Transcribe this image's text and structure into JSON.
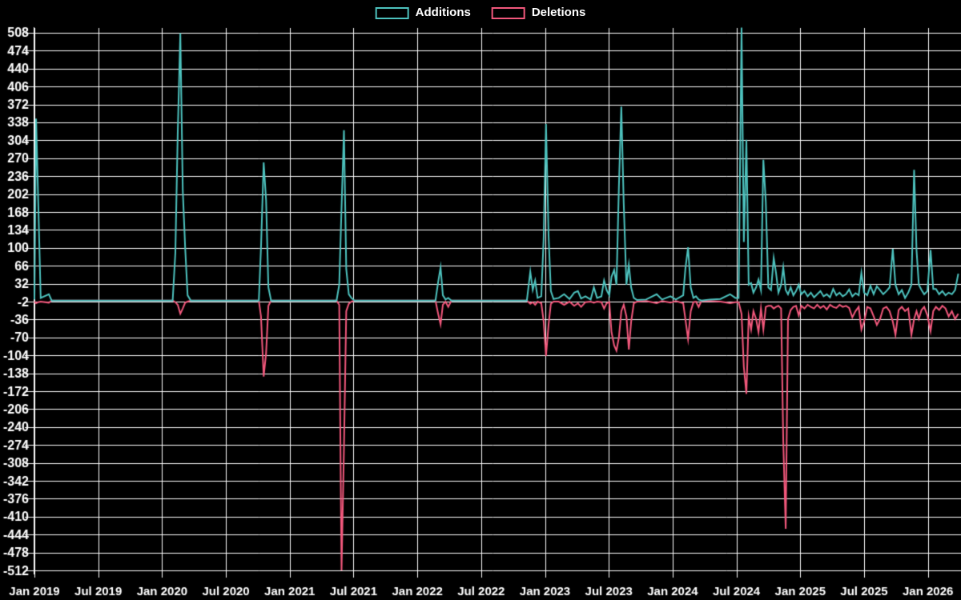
{
  "page": {
    "background_color": "#000000",
    "text_color": "#ffffff"
  },
  "legend": {
    "position": "top-center",
    "additions_label": "Additions",
    "deletions_label": "Deletions"
  },
  "chart_data": {
    "type": "line",
    "title": "",
    "background": "#000000",
    "grid_color": "#ffffff",
    "grid": true,
    "legend_position": "top-center",
    "y_axis": {
      "min": -512,
      "max": 508,
      "tick_step": 34,
      "ticks": [
        508,
        474,
        440,
        406,
        372,
        338,
        304,
        270,
        236,
        202,
        168,
        134,
        100,
        66,
        32,
        -2,
        -36,
        -70,
        -104,
        -138,
        -172,
        -206,
        -240,
        -274,
        -308,
        -342,
        -376,
        -410,
        -444,
        -478,
        -512
      ]
    },
    "x_axis": {
      "unit": "time (weekly samples, decimal years)",
      "ticks": [
        {
          "label": "Jan 2019",
          "year": 2019.0
        },
        {
          "label": "Jul 2019",
          "year": 2019.5
        },
        {
          "label": "Jan 2020",
          "year": 2020.0
        },
        {
          "label": "Jul 2020",
          "year": 2020.5
        },
        {
          "label": "Jan 2021",
          "year": 2021.0
        },
        {
          "label": "Jul 2021",
          "year": 2021.5
        },
        {
          "label": "Jan 2022",
          "year": 2022.0
        },
        {
          "label": "Jul 2022",
          "year": 2022.5
        },
        {
          "label": "Jan 2023",
          "year": 2023.0
        },
        {
          "label": "Jul 2023",
          "year": 2023.5
        },
        {
          "label": "Jan 2024",
          "year": 2024.0
        },
        {
          "label": "Jul 2024",
          "year": 2024.5
        },
        {
          "label": "Jan 2025",
          "year": 2025.0
        },
        {
          "label": "Jul 2025",
          "year": 2025.5
        },
        {
          "label": "Jan 2026",
          "year": 2026.0
        }
      ]
    },
    "series": [
      {
        "name": "Additions",
        "color": "#4dc2be",
        "value_index": 1
      },
      {
        "name": "Deletions",
        "color": "#f2587c",
        "value_index": 2
      }
    ],
    "points_format": [
      "decimal_year",
      "additions",
      "deletions"
    ],
    "points": [
      [
        2019.0,
        2,
        -2
      ],
      [
        2019.013,
        345,
        -5
      ],
      [
        2019.03,
        185,
        -3
      ],
      [
        2019.049,
        5,
        -2
      ],
      [
        2019.113,
        12,
        -4
      ],
      [
        2019.135,
        0,
        0
      ],
      [
        2019.333,
        0,
        0
      ],
      [
        2019.667,
        0,
        0
      ],
      [
        2020.0,
        0,
        0
      ],
      [
        2020.083,
        0,
        0
      ],
      [
        2020.104,
        90,
        -3
      ],
      [
        2020.123,
        320,
        -8
      ],
      [
        2020.143,
        507,
        -25
      ],
      [
        2020.162,
        210,
        -15
      ],
      [
        2020.181,
        100,
        -4
      ],
      [
        2020.2,
        10,
        -2
      ],
      [
        2020.225,
        0,
        0
      ],
      [
        2020.417,
        0,
        0
      ],
      [
        2020.667,
        0,
        0
      ],
      [
        2020.758,
        0,
        0
      ],
      [
        2020.775,
        100,
        -30
      ],
      [
        2020.796,
        262,
        -144
      ],
      [
        2020.815,
        190,
        -100
      ],
      [
        2020.833,
        25,
        -10
      ],
      [
        2020.854,
        0,
        0
      ],
      [
        2021.083,
        0,
        0
      ],
      [
        2021.367,
        0,
        0
      ],
      [
        2021.388,
        30,
        -8
      ],
      [
        2021.406,
        175,
        -512
      ],
      [
        2021.425,
        323,
        -280
      ],
      [
        2021.443,
        60,
        -20
      ],
      [
        2021.463,
        12,
        -6
      ],
      [
        2021.483,
        5,
        -2
      ],
      [
        2021.508,
        0,
        0
      ],
      [
        2021.75,
        0,
        0
      ],
      [
        2022.117,
        0,
        0
      ],
      [
        2022.142,
        0,
        0
      ],
      [
        2022.163,
        35,
        -25
      ],
      [
        2022.182,
        63,
        -45
      ],
      [
        2022.2,
        10,
        -8
      ],
      [
        2022.221,
        2,
        -2
      ],
      [
        2022.242,
        5,
        -12
      ],
      [
        2022.267,
        0,
        0
      ],
      [
        2022.5,
        0,
        0
      ],
      [
        2022.858,
        0,
        0
      ],
      [
        2022.885,
        55,
        -6
      ],
      [
        2022.904,
        20,
        -3
      ],
      [
        2022.923,
        38,
        -8
      ],
      [
        2022.942,
        5,
        -2
      ],
      [
        2022.971,
        8,
        -5
      ],
      [
        2022.99,
        120,
        -40
      ],
      [
        2023.008,
        335,
        -105
      ],
      [
        2023.028,
        124,
        -46
      ],
      [
        2023.046,
        18,
        -6
      ],
      [
        2023.067,
        3,
        -2
      ],
      [
        2023.108,
        5,
        -2
      ],
      [
        2023.15,
        12,
        -8
      ],
      [
        2023.192,
        3,
        -2
      ],
      [
        2023.229,
        15,
        -10
      ],
      [
        2023.258,
        18,
        -5
      ],
      [
        2023.283,
        4,
        -12
      ],
      [
        2023.317,
        8,
        -3
      ],
      [
        2023.358,
        2,
        -2
      ],
      [
        2023.383,
        25,
        -4
      ],
      [
        2023.408,
        5,
        -2
      ],
      [
        2023.442,
        8,
        -3
      ],
      [
        2023.463,
        38,
        -15
      ],
      [
        2023.483,
        20,
        -5
      ],
      [
        2023.504,
        10,
        -3
      ],
      [
        2023.521,
        45,
        -60
      ],
      [
        2023.542,
        58,
        -85
      ],
      [
        2023.56,
        30,
        -95
      ],
      [
        2023.579,
        215,
        -70
      ],
      [
        2023.598,
        368,
        -20
      ],
      [
        2023.617,
        184,
        -8
      ],
      [
        2023.638,
        30,
        -30
      ],
      [
        2023.657,
        68,
        -93
      ],
      [
        2023.675,
        25,
        -40
      ],
      [
        2023.696,
        5,
        -5
      ],
      [
        2023.721,
        1,
        -2
      ],
      [
        2023.792,
        2,
        -1
      ],
      [
        2023.875,
        12,
        -5
      ],
      [
        2023.917,
        2,
        -1
      ],
      [
        2023.983,
        8,
        -4
      ],
      [
        2024.025,
        2,
        -1
      ],
      [
        2024.083,
        10,
        -5
      ],
      [
        2024.1,
        60,
        -35
      ],
      [
        2024.121,
        101,
        -73
      ],
      [
        2024.142,
        25,
        -20
      ],
      [
        2024.163,
        5,
        -3
      ],
      [
        2024.183,
        8,
        -2
      ],
      [
        2024.204,
        2,
        -12
      ],
      [
        2024.225,
        0,
        -1
      ],
      [
        2024.292,
        2,
        -1
      ],
      [
        2024.375,
        3,
        -2
      ],
      [
        2024.45,
        12,
        -5
      ],
      [
        2024.492,
        5,
        -3
      ],
      [
        2024.517,
        5,
        -3
      ],
      [
        2024.54,
        518,
        -25
      ],
      [
        2024.558,
        111,
        -126
      ],
      [
        2024.578,
        305,
        -177
      ],
      [
        2024.596,
        30,
        -30
      ],
      [
        2024.615,
        33,
        -55
      ],
      [
        2024.633,
        15,
        -20
      ],
      [
        2024.654,
        25,
        -35
      ],
      [
        2024.673,
        40,
        -60
      ],
      [
        2024.692,
        20,
        -15
      ],
      [
        2024.711,
        267,
        -55
      ],
      [
        2024.73,
        187,
        -12
      ],
      [
        2024.75,
        25,
        -10
      ],
      [
        2024.771,
        20,
        -10
      ],
      [
        2024.792,
        81,
        -15
      ],
      [
        2024.81,
        53,
        -12
      ],
      [
        2024.829,
        15,
        -10
      ],
      [
        2024.85,
        30,
        -15
      ],
      [
        2024.867,
        63,
        -267
      ],
      [
        2024.886,
        20,
        -433
      ],
      [
        2024.904,
        12,
        -35
      ],
      [
        2024.925,
        25,
        -18
      ],
      [
        2024.946,
        10,
        -12
      ],
      [
        2024.967,
        18,
        -10
      ],
      [
        2024.988,
        30,
        -28
      ],
      [
        2025.008,
        12,
        -10
      ],
      [
        2025.033,
        18,
        -15
      ],
      [
        2025.058,
        8,
        -8
      ],
      [
        2025.083,
        15,
        -12
      ],
      [
        2025.108,
        6,
        -15
      ],
      [
        2025.133,
        12,
        -8
      ],
      [
        2025.158,
        18,
        -14
      ],
      [
        2025.183,
        8,
        -10
      ],
      [
        2025.208,
        12,
        -17
      ],
      [
        2025.233,
        6,
        -8
      ],
      [
        2025.258,
        22,
        -12
      ],
      [
        2025.283,
        10,
        -14
      ],
      [
        2025.308,
        15,
        -8
      ],
      [
        2025.333,
        8,
        -12
      ],
      [
        2025.358,
        12,
        -10
      ],
      [
        2025.383,
        21,
        -14
      ],
      [
        2025.408,
        8,
        -32
      ],
      [
        2025.433,
        14,
        -20
      ],
      [
        2025.458,
        10,
        -12
      ],
      [
        2025.479,
        53,
        -55
      ],
      [
        2025.5,
        15,
        -40
      ],
      [
        2025.525,
        10,
        -12
      ],
      [
        2025.55,
        28,
        -15
      ],
      [
        2025.575,
        12,
        -30
      ],
      [
        2025.6,
        27,
        -46
      ],
      [
        2025.625,
        20,
        -35
      ],
      [
        2025.65,
        12,
        -15
      ],
      [
        2025.675,
        18,
        -12
      ],
      [
        2025.7,
        25,
        -20
      ],
      [
        2025.725,
        98,
        -40
      ],
      [
        2025.746,
        30,
        -65
      ],
      [
        2025.771,
        12,
        -18
      ],
      [
        2025.796,
        20,
        -12
      ],
      [
        2025.821,
        5,
        -20
      ],
      [
        2025.846,
        15,
        -15
      ],
      [
        2025.871,
        30,
        -65
      ],
      [
        2025.892,
        248,
        -35
      ],
      [
        2025.911,
        95,
        -20
      ],
      [
        2025.929,
        30,
        -35
      ],
      [
        2025.95,
        20,
        -18
      ],
      [
        2025.971,
        12,
        -12
      ],
      [
        2025.996,
        18,
        -28
      ],
      [
        2026.021,
        96,
        -58
      ],
      [
        2026.042,
        22,
        -20
      ],
      [
        2026.063,
        22,
        -12
      ],
      [
        2026.088,
        12,
        -18
      ],
      [
        2026.113,
        18,
        -10
      ],
      [
        2026.138,
        10,
        -15
      ],
      [
        2026.163,
        15,
        -30
      ],
      [
        2026.188,
        12,
        -20
      ],
      [
        2026.213,
        20,
        -35
      ],
      [
        2026.238,
        51,
        -25
      ]
    ]
  }
}
